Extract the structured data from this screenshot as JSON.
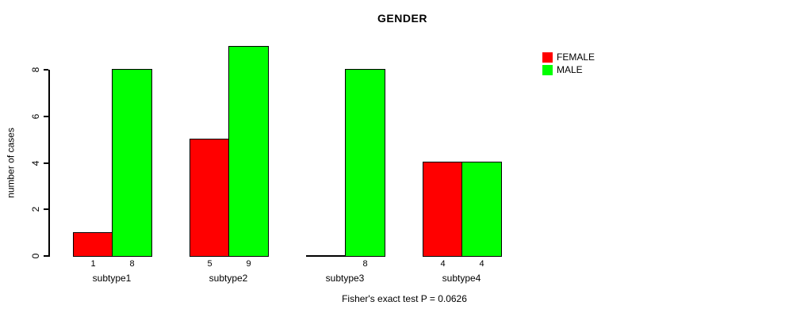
{
  "title": "GENDER",
  "legend": [
    {
      "label": "FEMALE",
      "color": "#ff0000"
    },
    {
      "label": "MALE",
      "color": "#00ff00"
    }
  ],
  "footer": "Fisher's exact test P = 0.0626",
  "chart_data": {
    "type": "bar",
    "title": "GENDER",
    "ylabel": "number of cases",
    "xlabel": "",
    "categories": [
      "subtype1",
      "subtype2",
      "subtype3",
      "subtype4"
    ],
    "series": [
      {
        "name": "FEMALE",
        "color": "#ff0000",
        "values": [
          1,
          5,
          0,
          4
        ]
      },
      {
        "name": "MALE",
        "color": "#00ff00",
        "values": [
          8,
          9,
          8,
          4
        ]
      }
    ],
    "bar_value_labels": [
      [
        "1",
        "8"
      ],
      [
        "5",
        "9"
      ],
      [
        "",
        "8"
      ],
      [
        "4",
        "4"
      ]
    ],
    "yticks": [
      0,
      2,
      4,
      6,
      8
    ],
    "ylim": [
      0,
      9
    ],
    "grid": false,
    "legend_position": "top-right",
    "annotation": "Fisher's exact test P = 0.0626"
  }
}
